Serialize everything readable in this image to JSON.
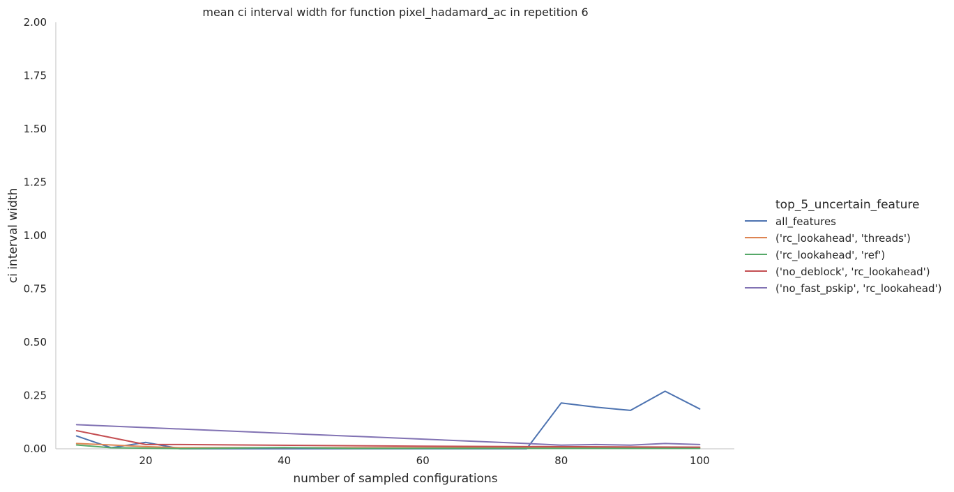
{
  "chart_data": {
    "type": "line",
    "title": "mean ci interval width for function pixel_hadamard_ac in repetition 6",
    "xlabel": "number of sampled configurations",
    "ylabel": "ci interval width",
    "xlim": [
      7,
      105
    ],
    "ylim": [
      0,
      2
    ],
    "xticks": [
      20,
      40,
      60,
      80,
      100
    ],
    "yticks": [
      0.0,
      0.25,
      0.5,
      0.75,
      1.0,
      1.25,
      1.5,
      1.75,
      2.0
    ],
    "ytick_labels": [
      "0.00",
      "0.25",
      "0.50",
      "0.75",
      "1.00",
      "1.25",
      "1.50",
      "1.75",
      "2.00"
    ],
    "grid": false,
    "legend_title": "top_5_uncertain_feature",
    "legend_position": "right",
    "series": [
      {
        "name": "all_features",
        "color": "#4c72b0",
        "x": [
          10,
          15,
          20,
          25,
          75,
          80,
          85,
          90,
          95,
          100
        ],
        "y": [
          0.06,
          0.005,
          0.03,
          0.0,
          0.0,
          0.215,
          0.195,
          0.18,
          0.27,
          0.187
        ]
      },
      {
        "name": "('rc_lookahead', 'threads')",
        "color": "#dd8452",
        "x": [
          10,
          15,
          20,
          25,
          100
        ],
        "y": [
          0.025,
          0.018,
          0.01,
          0.005,
          0.005
        ]
      },
      {
        "name": "('rc_lookahead', 'ref')",
        "color": "#55a868",
        "x": [
          10,
          15,
          20,
          25,
          40,
          50,
          100
        ],
        "y": [
          0.018,
          0.005,
          0.003,
          0.001,
          0.006,
          0.002,
          0.002
        ]
      },
      {
        "name": "('no_deblock', 'rc_lookahead')",
        "color": "#c44e52",
        "x": [
          10,
          20,
          25,
          60,
          100
        ],
        "y": [
          0.085,
          0.02,
          0.02,
          0.012,
          0.008
        ]
      },
      {
        "name": "('no_fast_pskip', 'rc_lookahead')",
        "color": "#8172b3",
        "x": [
          10,
          75,
          80,
          85,
          90,
          95,
          100
        ],
        "y": [
          0.113,
          0.025,
          0.017,
          0.02,
          0.017,
          0.025,
          0.02
        ]
      }
    ]
  }
}
